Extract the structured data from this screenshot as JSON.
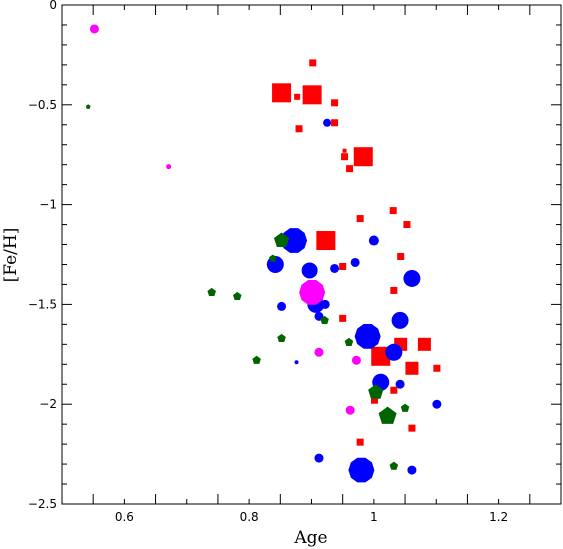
{
  "chart_data": {
    "type": "scatter",
    "title": "",
    "xlabel": "Age",
    "ylabel": "[Fe/H]",
    "xlim": [
      0.5,
      1.3
    ],
    "ylim": [
      -2.5,
      0
    ],
    "xticks": [
      0.6,
      0.8,
      1,
      1.2
    ],
    "xtick_labels": [
      "0.6",
      "0.8",
      "1",
      "1.2"
    ],
    "yticks": [
      -2.5,
      -2,
      -1.5,
      -1,
      -0.5,
      0
    ],
    "ytick_labels": [
      "−2.5",
      "−2",
      "−1.5",
      "−1",
      "−0.5",
      "0"
    ],
    "grid": false,
    "legend": "none",
    "series": [
      {
        "marker": "square",
        "color": "#ff0000",
        "points": [
          {
            "x": 0.902,
            "y": -0.29,
            "size": 7
          },
          {
            "x": 0.852,
            "y": -0.44,
            "size": 19
          },
          {
            "x": 0.901,
            "y": -0.45,
            "size": 19
          },
          {
            "x": 0.877,
            "y": -0.46,
            "size": 6
          },
          {
            "x": 0.937,
            "y": -0.49,
            "size": 7
          },
          {
            "x": 0.937,
            "y": -0.59,
            "size": 7
          },
          {
            "x": 0.88,
            "y": -0.62,
            "size": 7
          },
          {
            "x": 0.953,
            "y": -0.73,
            "size": 4
          },
          {
            "x": 0.953,
            "y": -0.76,
            "size": 7
          },
          {
            "x": 0.983,
            "y": -0.76,
            "size": 19
          },
          {
            "x": 0.961,
            "y": -0.82,
            "size": 7
          },
          {
            "x": 1.031,
            "y": -1.03,
            "size": 7
          },
          {
            "x": 0.978,
            "y": -1.07,
            "size": 7
          },
          {
            "x": 1.053,
            "y": -1.1,
            "size": 7
          },
          {
            "x": 0.923,
            "y": -1.18,
            "size": 19
          },
          {
            "x": 1.043,
            "y": -1.26,
            "size": 7
          },
          {
            "x": 0.95,
            "y": -1.31,
            "size": 7
          },
          {
            "x": 1.032,
            "y": -1.43,
            "size": 7
          },
          {
            "x": 0.95,
            "y": -1.57,
            "size": 7
          },
          {
            "x": 0.988,
            "y": -1.62,
            "size": 7
          },
          {
            "x": 1.043,
            "y": -1.7,
            "size": 13
          },
          {
            "x": 1.081,
            "y": -1.7,
            "size": 13
          },
          {
            "x": 1.011,
            "y": -1.76,
            "size": 19
          },
          {
            "x": 1.061,
            "y": -1.82,
            "size": 13
          },
          {
            "x": 1.101,
            "y": -1.82,
            "size": 7
          },
          {
            "x": 1.032,
            "y": -1.93,
            "size": 7
          },
          {
            "x": 1.001,
            "y": -1.98,
            "size": 7
          },
          {
            "x": 1.061,
            "y": -2.12,
            "size": 7
          },
          {
            "x": 0.978,
            "y": -2.19,
            "size": 7
          }
        ]
      },
      {
        "marker": "circle",
        "color": "#0000ff",
        "points": [
          {
            "x": 0.925,
            "y": -0.59,
            "size": 8
          },
          {
            "x": 0.872,
            "y": -1.18,
            "size": 26
          },
          {
            "x": 1.0,
            "y": -1.18,
            "size": 10
          },
          {
            "x": 0.842,
            "y": -1.3,
            "size": 17
          },
          {
            "x": 0.97,
            "y": -1.29,
            "size": 9
          },
          {
            "x": 0.897,
            "y": -1.33,
            "size": 16
          },
          {
            "x": 0.937,
            "y": -1.32,
            "size": 9
          },
          {
            "x": 1.061,
            "y": -1.37,
            "size": 17
          },
          {
            "x": 0.852,
            "y": -1.51,
            "size": 9
          },
          {
            "x": 0.907,
            "y": -1.5,
            "size": 17
          },
          {
            "x": 0.922,
            "y": -1.5,
            "size": 9
          },
          {
            "x": 0.912,
            "y": -1.56,
            "size": 9
          },
          {
            "x": 1.042,
            "y": -1.58,
            "size": 17
          },
          {
            "x": 0.99,
            "y": -1.66,
            "size": 26
          },
          {
            "x": 1.032,
            "y": -1.74,
            "size": 17
          },
          {
            "x": 0.876,
            "y": -1.79,
            "size": 4
          },
          {
            "x": 1.011,
            "y": -1.89,
            "size": 17
          },
          {
            "x": 1.042,
            "y": -1.9,
            "size": 9
          },
          {
            "x": 1.101,
            "y": -2.0,
            "size": 9
          },
          {
            "x": 0.912,
            "y": -2.27,
            "size": 9
          },
          {
            "x": 0.98,
            "y": -2.33,
            "size": 26
          },
          {
            "x": 1.061,
            "y": -2.33,
            "size": 9
          }
        ]
      },
      {
        "marker": "circle",
        "color": "#ff00ff",
        "points": [
          {
            "x": 0.552,
            "y": -0.12,
            "size": 9
          },
          {
            "x": 0.671,
            "y": -0.81,
            "size": 5
          },
          {
            "x": 0.901,
            "y": -1.44,
            "size": 26
          },
          {
            "x": 0.912,
            "y": -1.74,
            "size": 9
          },
          {
            "x": 0.972,
            "y": -1.78,
            "size": 9
          },
          {
            "x": 0.962,
            "y": -2.03,
            "size": 9
          }
        ]
      },
      {
        "marker": "pentagon",
        "color": "#006400",
        "points": [
          {
            "x": 0.542,
            "y": -0.51,
            "size": 5
          },
          {
            "x": 0.852,
            "y": -1.18,
            "size": 16
          },
          {
            "x": 0.838,
            "y": -1.27,
            "size": 8
          },
          {
            "x": 0.74,
            "y": -1.44,
            "size": 9
          },
          {
            "x": 0.781,
            "y": -1.46,
            "size": 9
          },
          {
            "x": 0.921,
            "y": -1.58,
            "size": 9
          },
          {
            "x": 0.852,
            "y": -1.67,
            "size": 9
          },
          {
            "x": 0.96,
            "y": -1.69,
            "size": 9
          },
          {
            "x": 0.812,
            "y": -1.78,
            "size": 9
          },
          {
            "x": 1.003,
            "y": -1.94,
            "size": 16
          },
          {
            "x": 1.022,
            "y": -2.06,
            "size": 19
          },
          {
            "x": 1.05,
            "y": -2.02,
            "size": 9
          },
          {
            "x": 1.032,
            "y": -2.31,
            "size": 9
          }
        ]
      }
    ]
  }
}
